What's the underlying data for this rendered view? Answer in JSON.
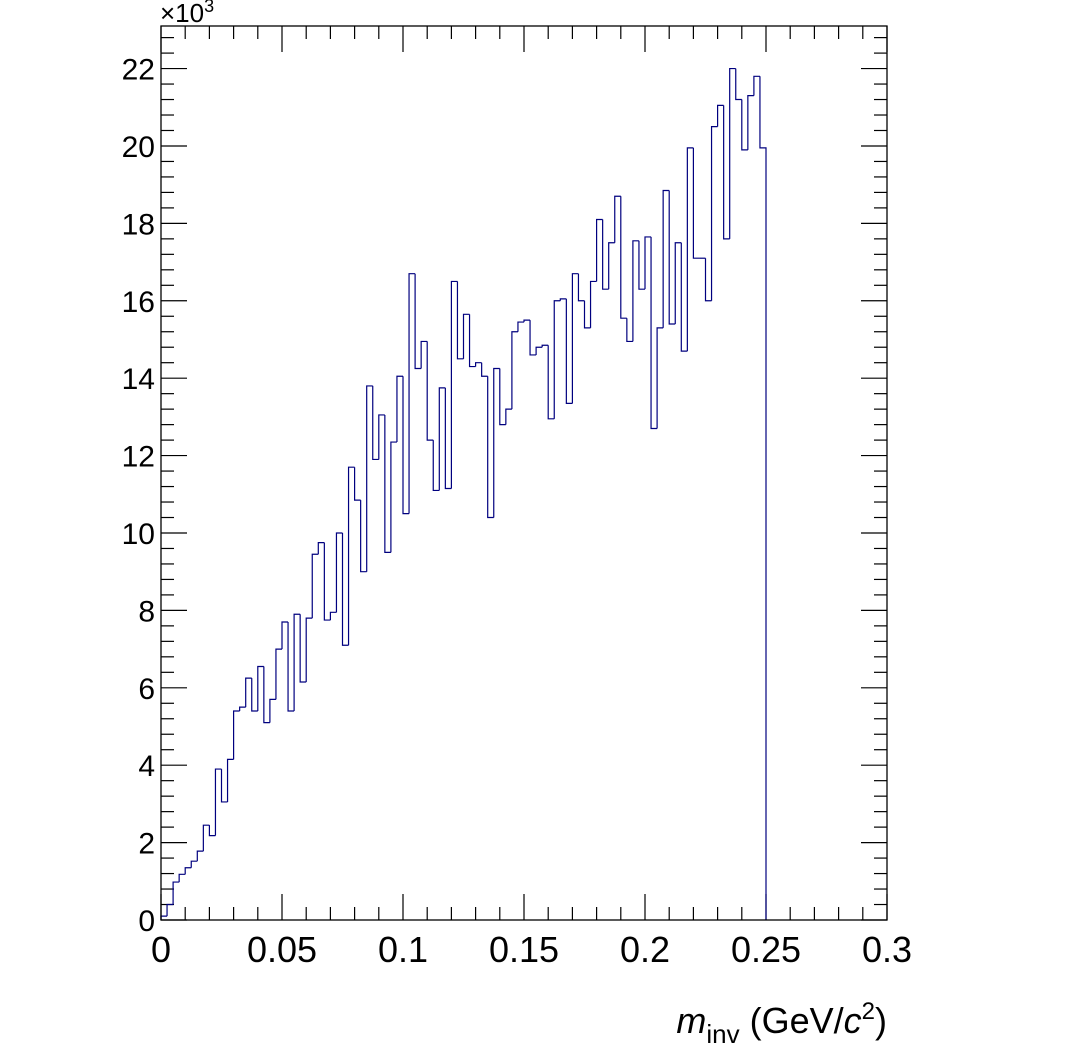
{
  "chart_data": {
    "type": "histogram",
    "title": "",
    "xlabel": {
      "main": "m",
      "sub": "inv",
      "units_prefix": " (GeV/",
      "units_var": "c",
      "units_sup": "2",
      "units_suffix": ")"
    },
    "ylabel": "",
    "y_multiplier": {
      "text": "×10",
      "exponent": "3"
    },
    "xlim": [
      0,
      0.3
    ],
    "ylim": [
      0,
      23.1
    ],
    "x_ticks": [
      "0",
      "0.05",
      "0.1",
      "0.15",
      "0.2",
      "0.25",
      "0.3"
    ],
    "x_tick_values": [
      0,
      0.05,
      0.1,
      0.15,
      0.2,
      0.25,
      0.3
    ],
    "y_ticks": [
      "0",
      "2",
      "4",
      "6",
      "8",
      "10",
      "12",
      "14",
      "16",
      "18",
      "20",
      "22"
    ],
    "y_tick_values": [
      0,
      2,
      4,
      6,
      8,
      10,
      12,
      14,
      16,
      18,
      20,
      22
    ],
    "bin_width": 0.0025,
    "line_color": "#00007f",
    "values": [
      0.1,
      0.4,
      0.98,
      1.18,
      1.35,
      1.52,
      1.78,
      2.45,
      2.18,
      3.9,
      3.05,
      4.15,
      5.4,
      5.5,
      6.25,
      5.4,
      6.55,
      5.1,
      5.7,
      7.0,
      7.7,
      5.4,
      7.9,
      6.15,
      7.8,
      9.45,
      9.75,
      7.75,
      7.95,
      10.0,
      7.1,
      11.7,
      10.85,
      9.0,
      13.8,
      11.9,
      13.05,
      9.5,
      12.35,
      14.05,
      10.5,
      16.7,
      14.25,
      14.95,
      12.4,
      11.1,
      13.75,
      11.15,
      16.5,
      14.5,
      15.65,
      14.3,
      14.4,
      14.05,
      10.4,
      14.25,
      12.8,
      13.2,
      15.2,
      15.45,
      15.5,
      14.6,
      14.8,
      14.85,
      12.95,
      16.0,
      16.05,
      13.35,
      16.7,
      16.0,
      15.3,
      16.5,
      18.1,
      16.3,
      17.5,
      18.7,
      15.55,
      14.95,
      17.55,
      16.3,
      17.65,
      12.7,
      15.3,
      18.85,
      15.4,
      17.5,
      14.7,
      19.95,
      17.1,
      17.1,
      16.0,
      20.5,
      21.05,
      17.6,
      22.0,
      21.2,
      19.9,
      21.3,
      21.8,
      19.95
    ]
  }
}
